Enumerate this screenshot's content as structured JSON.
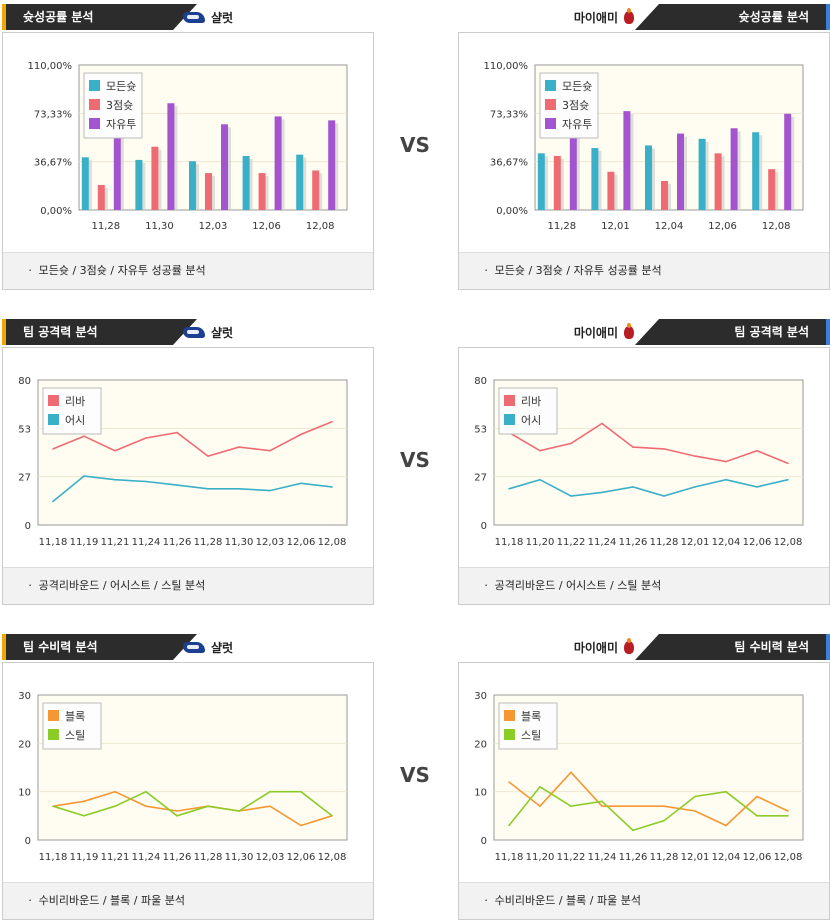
{
  "vs_label": "VS",
  "sections": [
    {
      "title": "슛성공률 분석",
      "footer": "ㆍ 모든슛 / 3점슛 / 자유투 성공률 분석",
      "left": {
        "team": "샬럿",
        "chart": {
          "type": "bar",
          "ylim": [
            0,
            110
          ],
          "yticks": [
            "0,00%",
            "36,67%",
            "73,33%",
            "110,00%"
          ],
          "categories": [
            "11,28",
            "11,30",
            "12,03",
            "12,06",
            "12,08"
          ],
          "series": [
            {
              "name": "모든슛",
              "color": "#3ab0c8",
              "values": [
                40,
                38,
                37,
                41,
                42
              ]
            },
            {
              "name": "3점슛",
              "color": "#ef6b73",
              "values": [
                19,
                48,
                28,
                28,
                30
              ]
            },
            {
              "name": "자유투",
              "color": "#a355d0",
              "values": [
                81,
                81,
                65,
                71,
                68
              ]
            }
          ]
        }
      },
      "right": {
        "team": "마이애미",
        "chart": {
          "type": "bar",
          "ylim": [
            0,
            110
          ],
          "yticks": [
            "0,00%",
            "36,67%",
            "73,33%",
            "110,00%"
          ],
          "categories": [
            "11,28",
            "12,01",
            "12,04",
            "12,06",
            "12,08"
          ],
          "series": [
            {
              "name": "모든슛",
              "color": "#3ab0c8",
              "values": [
                43,
                47,
                49,
                54,
                59
              ]
            },
            {
              "name": "3점슛",
              "color": "#ef6b73",
              "values": [
                41,
                29,
                22,
                43,
                31
              ]
            },
            {
              "name": "자유투",
              "color": "#a355d0",
              "values": [
                71,
                75,
                58,
                62,
                73
              ]
            }
          ]
        }
      }
    },
    {
      "title": "팀 공격력 분석",
      "footer": "ㆍ 공격리바운드 / 어시스트 / 스틸 분석",
      "left": {
        "team": "샬럿",
        "chart": {
          "type": "line",
          "ylim": [
            0,
            80
          ],
          "yticks": [
            "0",
            "27",
            "53",
            "80"
          ],
          "x": [
            "11,18",
            "11,19",
            "11,21",
            "11,24",
            "11,26",
            "11,28",
            "11,30",
            "12,03",
            "12,06",
            "12,08"
          ],
          "series": [
            {
              "name": "리바",
              "color": "#ef6b73",
              "values": [
                42,
                49,
                41,
                48,
                51,
                38,
                43,
                41,
                50,
                57
              ]
            },
            {
              "name": "어시",
              "color": "#3ab0c8",
              "values": [
                13,
                27,
                25,
                24,
                22,
                20,
                20,
                19,
                23,
                21
              ]
            }
          ]
        }
      },
      "right": {
        "team": "마이애미",
        "chart": {
          "type": "line",
          "ylim": [
            0,
            80
          ],
          "yticks": [
            "0",
            "27",
            "53",
            "80"
          ],
          "x": [
            "11,18",
            "11,20",
            "11,22",
            "11,24",
            "11,26",
            "11,28",
            "12,01",
            "12,04",
            "12,06",
            "12,08"
          ],
          "series": [
            {
              "name": "리바",
              "color": "#ef6b73",
              "values": [
                51,
                41,
                45,
                56,
                43,
                42,
                38,
                35,
                41,
                34
              ]
            },
            {
              "name": "어시",
              "color": "#3ab0c8",
              "values": [
                20,
                25,
                16,
                18,
                21,
                16,
                21,
                25,
                21,
                25
              ]
            }
          ]
        }
      }
    },
    {
      "title": "팀 수비력 분석",
      "footer": "ㆍ 수비리바운드 / 블록 / 파울 분석",
      "left": {
        "team": "샬럿",
        "chart": {
          "type": "line",
          "ylim": [
            0,
            30
          ],
          "yticks": [
            "0",
            "10",
            "20",
            "30"
          ],
          "x": [
            "11,18",
            "11,19",
            "11,21",
            "11,24",
            "11,26",
            "11,28",
            "11,30",
            "12,03",
            "12,06",
            "12,08"
          ],
          "series": [
            {
              "name": "블록",
              "color": "#f59733",
              "values": [
                7,
                8,
                10,
                7,
                6,
                7,
                6,
                7,
                3,
                5
              ]
            },
            {
              "name": "스틸",
              "color": "#8ccc28",
              "values": [
                7,
                5,
                7,
                10,
                5,
                7,
                6,
                10,
                10,
                5
              ]
            }
          ]
        }
      },
      "right": {
        "team": "마이애미",
        "chart": {
          "type": "line",
          "ylim": [
            0,
            30
          ],
          "yticks": [
            "0",
            "10",
            "20",
            "30"
          ],
          "x": [
            "11,18",
            "11,20",
            "11,22",
            "11,24",
            "11,26",
            "11,28",
            "12,01",
            "12,04",
            "12,06",
            "12,08"
          ],
          "series": [
            {
              "name": "블록",
              "color": "#f59733",
              "values": [
                12,
                7,
                14,
                7,
                7,
                7,
                6,
                3,
                9,
                6
              ]
            },
            {
              "name": "스틸",
              "color": "#8ccc28",
              "values": [
                3,
                11,
                7,
                8,
                2,
                4,
                9,
                10,
                5,
                5
              ]
            }
          ]
        }
      }
    }
  ]
}
